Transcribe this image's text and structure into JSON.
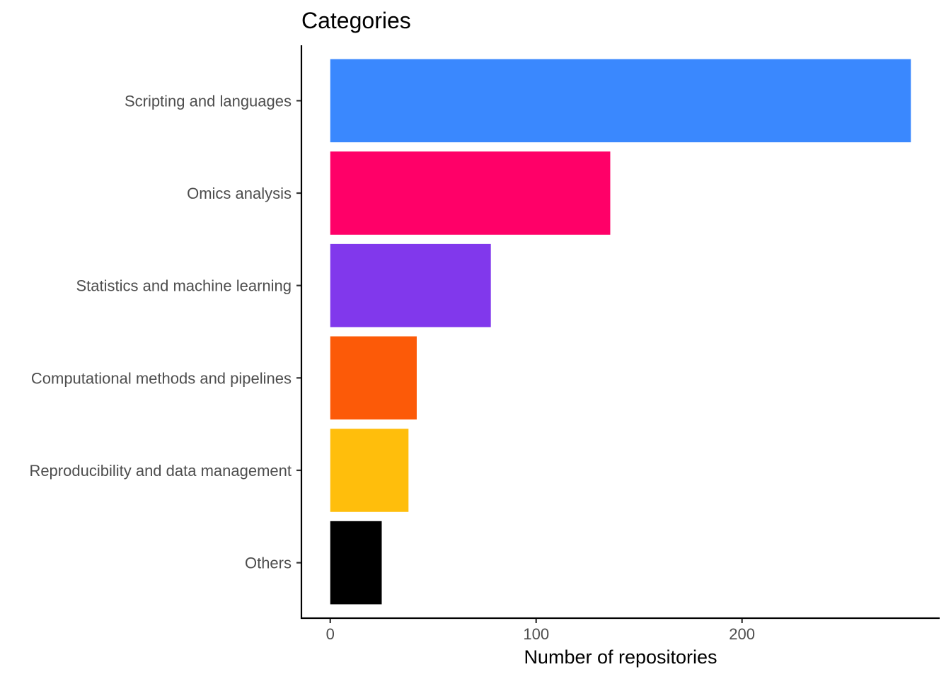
{
  "chart_data": {
    "type": "bar",
    "orientation": "horizontal",
    "title": "Categories",
    "xlabel": "Number of repositories",
    "ylabel": "",
    "categories": [
      "Scripting and languages",
      "Omics analysis",
      "Statistics and machine learning",
      "Computational methods and pipelines",
      "Reproducibility and data management",
      "Others"
    ],
    "values": [
      282,
      136,
      78,
      42,
      38,
      25
    ],
    "colors": [
      "#3a88fe",
      "#ff0068",
      "#8138ec",
      "#fc5a08",
      "#ffbe0c",
      "#000000"
    ],
    "xlim": [
      -14,
      296
    ],
    "xticks": [
      0,
      100,
      200
    ],
    "xtick_labels": [
      "0",
      "100",
      "200"
    ],
    "grid": false,
    "legend": "none"
  }
}
